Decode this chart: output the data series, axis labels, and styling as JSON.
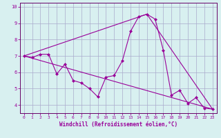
{
  "xlabel": "Windchill (Refroidissement éolien,°C)",
  "bg_color": "#d8f0f0",
  "line_color": "#990099",
  "grid_color": "#aaaacc",
  "spine_color": "#660066",
  "xlim": [
    -0.5,
    23.5
  ],
  "ylim": [
    3.5,
    10.25
  ],
  "yticks": [
    4,
    5,
    6,
    7,
    8,
    9,
    10
  ],
  "xticks": [
    0,
    1,
    2,
    3,
    4,
    5,
    6,
    7,
    8,
    9,
    10,
    11,
    12,
    13,
    14,
    15,
    16,
    17,
    18,
    19,
    20,
    21,
    22,
    23
  ],
  "series1_x": [
    0,
    1,
    2,
    3,
    4,
    5,
    6,
    7,
    8,
    9,
    10,
    11,
    12,
    13,
    14,
    15,
    16,
    17,
    18,
    19,
    20,
    21,
    22,
    23
  ],
  "series1_y": [
    7.0,
    6.9,
    7.1,
    7.1,
    5.9,
    6.5,
    5.5,
    5.35,
    5.0,
    4.5,
    5.7,
    5.8,
    6.7,
    8.5,
    9.4,
    9.55,
    9.25,
    7.35,
    4.6,
    4.9,
    4.1,
    4.45,
    3.8,
    3.75
  ],
  "trend1_x": [
    0,
    23
  ],
  "trend1_y": [
    7.0,
    3.75
  ],
  "trend2_x": [
    0,
    15
  ],
  "trend2_y": [
    7.0,
    9.55
  ],
  "trend3_x": [
    15,
    23
  ],
  "trend3_y": [
    9.55,
    3.75
  ],
  "marker": "D",
  "markersize": 2.0,
  "linewidth": 0.8,
  "tick_fontsize": 5.0,
  "xlabel_fontsize": 5.5
}
